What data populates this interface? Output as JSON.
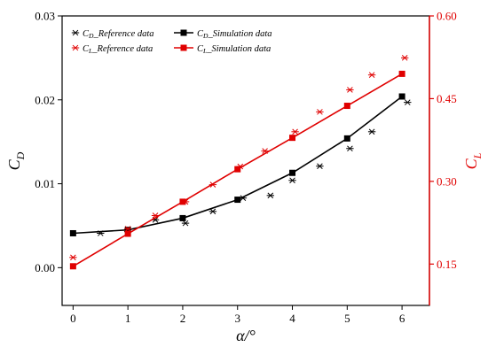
{
  "chart_data": {
    "type": "line",
    "xlabel": "α/°",
    "ylabel_left": "C",
    "ylabel_left_sub": "D",
    "ylabel_right": "C",
    "ylabel_right_sub": "L",
    "xlim": [
      -0.2,
      6.5
    ],
    "ylim_left": [
      -0.0045,
      0.03
    ],
    "ylim_right": [
      0.075,
      0.6
    ],
    "xticks": [
      "0",
      "1",
      "2",
      "3",
      "4",
      "5",
      "6"
    ],
    "yticks_left": [
      "0.00",
      "0.01",
      "0.02",
      "0.03"
    ],
    "yticks_right": [
      "0.15",
      "0.30",
      "0.45",
      "0.60"
    ],
    "colors": {
      "cd": "#000000",
      "cl": "#e00000"
    },
    "legend_position": "top-left",
    "series": [
      {
        "name": "C_D_Reference data",
        "name_main": "C",
        "name_sub": "D",
        "name_rest": "_Reference data",
        "axis": "left",
        "marker": "asterisk",
        "line": false,
        "color": "#000000",
        "x": [
          1.0,
          0.5,
          1.5,
          2.05,
          2.55,
          3.1,
          3.6,
          4.0,
          4.5,
          5.05,
          5.45,
          6.1
        ],
        "y": [
          0.0043,
          0.0041,
          0.0057,
          0.0053,
          0.0067,
          0.0083,
          0.0086,
          0.0104,
          0.0121,
          0.0142,
          0.0162,
          0.0197
        ]
      },
      {
        "name": "C_D_Simulation data",
        "name_main": "C",
        "name_sub": "D",
        "name_rest": "_Simulation data",
        "axis": "left",
        "marker": "square",
        "line": true,
        "color": "#000000",
        "x": [
          0,
          1,
          2,
          3,
          4,
          5,
          6
        ],
        "y": [
          0.0041,
          0.0045,
          0.0059,
          0.0081,
          0.0113,
          0.0154,
          0.0204
        ]
      },
      {
        "name": "C_L_Reference data",
        "name_main": "C",
        "name_sub": "L",
        "name_rest": "_Reference data",
        "axis": "right",
        "marker": "asterisk",
        "line": false,
        "color": "#e00000",
        "x": [
          0,
          1,
          1.5,
          2.05,
          2.55,
          3.05,
          3.5,
          4.05,
          4.5,
          5.05,
          5.45,
          6.05
        ],
        "y": [
          0.162,
          0.214,
          0.238,
          0.263,
          0.294,
          0.327,
          0.355,
          0.39,
          0.426,
          0.466,
          0.493,
          0.524
        ]
      },
      {
        "name": "C_L_Simulation data",
        "name_main": "C",
        "name_sub": "L",
        "name_rest": "_Simulation data",
        "axis": "right",
        "marker": "square",
        "line": true,
        "color": "#e00000",
        "x": [
          0,
          1,
          2,
          3,
          4,
          5,
          6
        ],
        "y": [
          0.146,
          0.205,
          0.263,
          0.322,
          0.379,
          0.437,
          0.495
        ]
      }
    ]
  }
}
